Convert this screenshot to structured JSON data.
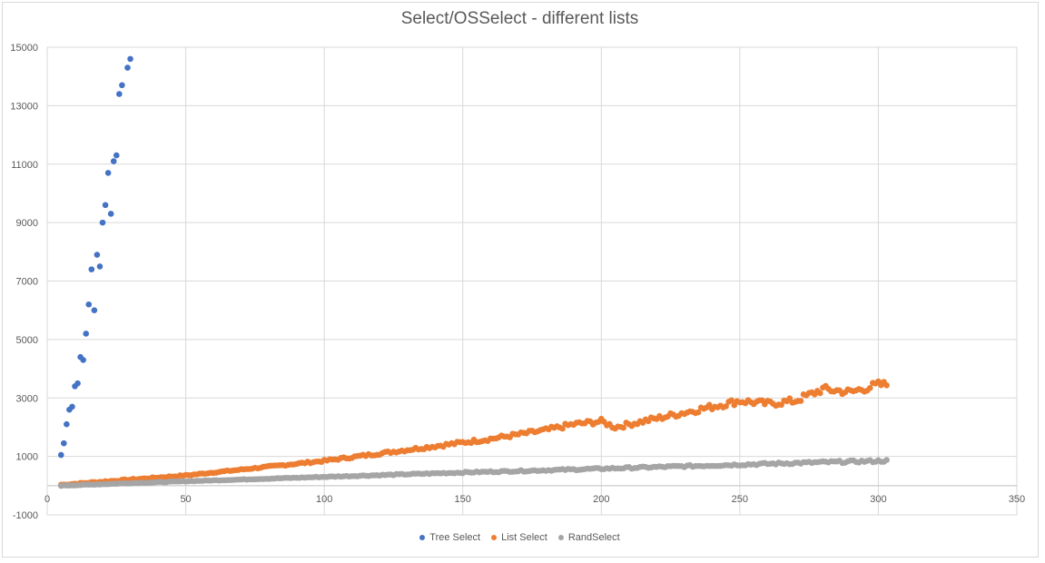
{
  "chart_data": {
    "type": "scatter",
    "title": "Select/OSSelect - different lists",
    "xlabel": "",
    "ylabel": "",
    "xlim": [
      0,
      350
    ],
    "ylim": [
      -1000,
      15000
    ],
    "x_ticks": [
      0,
      50,
      100,
      150,
      200,
      250,
      300,
      350
    ],
    "y_ticks": [
      -1000,
      1000,
      3000,
      5000,
      7000,
      9000,
      11000,
      13000,
      15000
    ],
    "x_axis_at": 0,
    "grid": true,
    "legend_position": "bottom",
    "series": [
      {
        "name": "Tree Select",
        "color": "#4472C4",
        "points": [
          [
            5,
            1050
          ],
          [
            6,
            1450
          ],
          [
            7,
            2100
          ],
          [
            8,
            2600
          ],
          [
            9,
            2700
          ],
          [
            10,
            3400
          ],
          [
            11,
            3500
          ],
          [
            12,
            4400
          ],
          [
            13,
            4300
          ],
          [
            14,
            5200
          ],
          [
            15,
            6200
          ],
          [
            16,
            7400
          ],
          [
            17,
            6000
          ],
          [
            18,
            7900
          ],
          [
            19,
            7500
          ],
          [
            20,
            9000
          ],
          [
            21,
            9600
          ],
          [
            22,
            10700
          ],
          [
            23,
            9300
          ],
          [
            24,
            11100
          ],
          [
            25,
            11300
          ],
          [
            26,
            13400
          ],
          [
            27,
            13700
          ],
          [
            29,
            14300
          ],
          [
            30,
            14600
          ]
        ]
      },
      {
        "name": "List Select",
        "color": "#ED7D31",
        "anchors": [
          [
            5,
            30
          ],
          [
            50,
            350
          ],
          [
            100,
            850
          ],
          [
            140,
            1350
          ],
          [
            160,
            1600
          ],
          [
            180,
            1900
          ],
          [
            190,
            2100
          ],
          [
            200,
            2200
          ],
          [
            205,
            2000
          ],
          [
            220,
            2300
          ],
          [
            240,
            2700
          ],
          [
            250,
            2900
          ],
          [
            260,
            2800
          ],
          [
            270,
            2900
          ],
          [
            280,
            3300
          ],
          [
            290,
            3200
          ],
          [
            300,
            3450
          ],
          [
            303,
            3450
          ]
        ]
      },
      {
        "name": "RandSelect",
        "color": "#A5A5A5",
        "anchors": [
          [
            5,
            0
          ],
          [
            50,
            150
          ],
          [
            100,
            300
          ],
          [
            150,
            450
          ],
          [
            200,
            580
          ],
          [
            250,
            720
          ],
          [
            280,
            800
          ],
          [
            303,
            850
          ]
        ]
      }
    ]
  }
}
